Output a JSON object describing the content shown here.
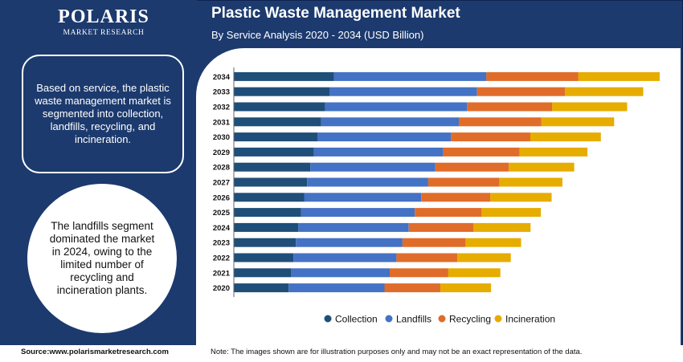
{
  "brand": {
    "name": "POLARIS",
    "tagline": "MARKET RESEARCH"
  },
  "info_text": "Based on service, the plastic waste management market is segmented into collection, landfills, recycling, and incineration.",
  "highlight_text": "The landfills segment dominated the market in 2024, owing to the limited number of recycling and incineration plants.",
  "source": "Source:www.polarismarketresearch.com",
  "note": "Note: The images shown are for illustration purposes only and may not be an exact representation of the data.",
  "chart_data": {
    "type": "bar",
    "orientation": "horizontal",
    "stacked": true,
    "title": "Plastic Waste Management Market",
    "subtitle": "By Service Analysis 2020 - 2034 (USD Billion)",
    "categories": [
      "2034",
      "2033",
      "2032",
      "2031",
      "2030",
      "2029",
      "2028",
      "2027",
      "2026",
      "2025",
      "2024",
      "2023",
      "2022",
      "2021",
      "2020"
    ],
    "series": [
      {
        "name": "Collection",
        "color": "#1f4e79",
        "values": [
          40.0,
          38.2,
          36.5,
          34.9,
          33.4,
          32.0,
          30.6,
          29.3,
          28.1,
          26.9,
          25.8,
          24.8,
          23.8,
          22.8,
          21.9
        ]
      },
      {
        "name": "Landfills",
        "color": "#4472c4",
        "values": [
          60.9,
          59.0,
          56.7,
          55.0,
          53.4,
          51.6,
          49.9,
          48.4,
          46.8,
          45.4,
          44.1,
          42.6,
          41.2,
          39.5,
          38.3
        ]
      },
      {
        "name": "Recycling",
        "color": "#e06c2a",
        "values": [
          36.7,
          35.2,
          34.0,
          33.0,
          31.7,
          30.6,
          29.4,
          28.4,
          27.6,
          26.7,
          25.8,
          25.2,
          24.3,
          23.4,
          22.4
        ]
      },
      {
        "name": "Incineration",
        "color": "#e6ac00",
        "values": [
          32.6,
          31.2,
          30.0,
          29.1,
          28.2,
          27.1,
          26.1,
          25.2,
          24.5,
          23.7,
          22.9,
          22.2,
          21.4,
          20.8,
          20.2
        ]
      }
    ],
    "xlim": [
      0,
      175
    ],
    "grid": false,
    "legend": "bottom"
  }
}
